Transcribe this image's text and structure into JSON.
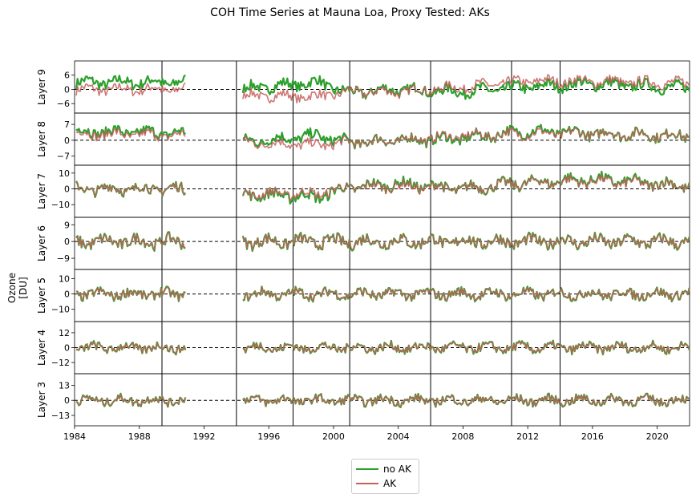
{
  "figure": {
    "title": "COH Time Series at Mauna Loa, Proxy Tested: AKs",
    "ylabel": "Ozone [DU]"
  },
  "legend": {
    "items": [
      {
        "label": "no AK",
        "color": "#2ca02c"
      },
      {
        "label": "AK",
        "color": "#c4605e"
      }
    ]
  },
  "colors": {
    "no_ak": "#2ca02c",
    "ak": "#c4605e",
    "overlap": "#5a4a10"
  },
  "chart_data": {
    "type": "line",
    "xlim": [
      1984,
      2022
    ],
    "xticks": [
      1984,
      1988,
      1992,
      1996,
      2000,
      2004,
      2008,
      2012,
      2016,
      2020
    ],
    "xtick_labels": [
      "1984",
      "1988",
      "1992",
      "1996",
      "2000",
      "2004",
      "2008",
      "2012",
      "2016",
      "2020"
    ],
    "data_gap": [
      1990.9,
      1994.0
    ],
    "vertical_lines": [
      1989.4,
      1994.0,
      1997.5,
      2001.0,
      2006.0,
      2011.0,
      2014.0
    ],
    "zero_line": 0,
    "series_names": [
      "no AK",
      "AK"
    ],
    "panels": [
      {
        "label": "Layer 9",
        "yticks": [
          6,
          0,
          -6
        ],
        "ytick_labels": [
          "6",
          "0",
          "−6"
        ],
        "ylim": [
          -10,
          12
        ],
        "amp": 2.2,
        "ak_offset_trend": [
          [
            1984,
            0
          ],
          [
            1991,
            0
          ],
          [
            1994,
            -2.5
          ],
          [
            1999,
            -3
          ],
          [
            2001,
            -1
          ],
          [
            2004,
            -1
          ],
          [
            2008,
            1
          ],
          [
            2012,
            3.5
          ],
          [
            2016,
            3.5
          ],
          [
            2022,
            2.5
          ]
        ],
        "noak_offset_trend": [
          [
            1984,
            3
          ],
          [
            1991,
            3
          ],
          [
            1994,
            0
          ],
          [
            1999,
            3
          ],
          [
            2001,
            -1.5
          ],
          [
            2004,
            0
          ],
          [
            2008,
            -1
          ],
          [
            2012,
            1
          ],
          [
            2016,
            2.5
          ],
          [
            2022,
            0.5
          ]
        ]
      },
      {
        "label": "Layer 8",
        "yticks": [
          7,
          0,
          -7
        ],
        "ytick_labels": [
          "7",
          "0",
          "−7"
        ],
        "ylim": [
          -11,
          12
        ],
        "amp": 2.3,
        "ak_offset_trend": [
          [
            1984,
            3
          ],
          [
            1991,
            2
          ],
          [
            1994,
            -1
          ],
          [
            1999,
            -2
          ],
          [
            2001,
            -1
          ],
          [
            2004,
            0
          ],
          [
            2008,
            2
          ],
          [
            2012,
            3
          ],
          [
            2016,
            3
          ],
          [
            2022,
            2
          ]
        ],
        "noak_offset_trend": [
          [
            1984,
            4
          ],
          [
            1991,
            3
          ],
          [
            1994,
            -1
          ],
          [
            1999,
            2
          ],
          [
            2001,
            -1
          ],
          [
            2004,
            0
          ],
          [
            2008,
            1
          ],
          [
            2012,
            4
          ],
          [
            2016,
            3
          ],
          [
            2022,
            2
          ]
        ]
      },
      {
        "label": "Layer 7",
        "yticks": [
          10,
          0,
          -10
        ],
        "ytick_labels": [
          "10",
          "0",
          "−10"
        ],
        "ylim": [
          -18,
          15
        ],
        "amp": 3.4,
        "ak_offset_trend": [
          [
            1984,
            0
          ],
          [
            1991,
            0
          ],
          [
            1994,
            -3
          ],
          [
            1999,
            -3
          ],
          [
            2001,
            1
          ],
          [
            2004,
            2
          ],
          [
            2008,
            0
          ],
          [
            2012,
            4
          ],
          [
            2016,
            5
          ],
          [
            2022,
            2
          ]
        ],
        "noak_offset_trend": [
          [
            1984,
            0
          ],
          [
            1991,
            0
          ],
          [
            1994,
            -3
          ],
          [
            1999,
            -5
          ],
          [
            2001,
            1
          ],
          [
            2004,
            3
          ],
          [
            2008,
            0
          ],
          [
            2012,
            4
          ],
          [
            2016,
            6
          ],
          [
            2022,
            2
          ]
        ]
      },
      {
        "label": "Layer 6",
        "yticks": [
          9,
          0,
          -9
        ],
        "ytick_labels": [
          "9",
          "0",
          "−9"
        ],
        "ylim": [
          -15,
          13
        ],
        "amp": 3.2,
        "ak_offset_trend": [
          [
            1984,
            0
          ],
          [
            2022,
            0
          ]
        ],
        "noak_offset_trend": [
          [
            1984,
            0
          ],
          [
            2022,
            0
          ]
        ]
      },
      {
        "label": "Layer 5",
        "yticks": [
          10,
          0,
          -10
        ],
        "ytick_labels": [
          "10",
          "0",
          "−10"
        ],
        "ylim": [
          -18,
          16
        ],
        "amp": 3.2,
        "ak_offset_trend": [
          [
            1984,
            0
          ],
          [
            2022,
            0
          ]
        ],
        "noak_offset_trend": [
          [
            1984,
            0
          ],
          [
            2022,
            0
          ]
        ]
      },
      {
        "label": "Layer 4",
        "yticks": [
          12,
          0,
          -12
        ],
        "ytick_labels": [
          "12",
          "0",
          "−12"
        ],
        "ylim": [
          -21,
          21
        ],
        "amp": 3.6,
        "ak_offset_trend": [
          [
            1984,
            0
          ],
          [
            2022,
            0
          ]
        ],
        "noak_offset_trend": [
          [
            1984,
            0
          ],
          [
            2022,
            0
          ]
        ]
      },
      {
        "label": "Layer 3",
        "yticks": [
          13,
          0,
          -13
        ],
        "ytick_labels": [
          "13",
          "0",
          "−13"
        ],
        "ylim": [
          -22,
          23
        ],
        "amp": 3.8,
        "ak_offset_trend": [
          [
            1984,
            0
          ],
          [
            2022,
            0
          ]
        ],
        "noak_offset_trend": [
          [
            1984,
            0
          ],
          [
            2022,
            0
          ]
        ]
      }
    ]
  }
}
